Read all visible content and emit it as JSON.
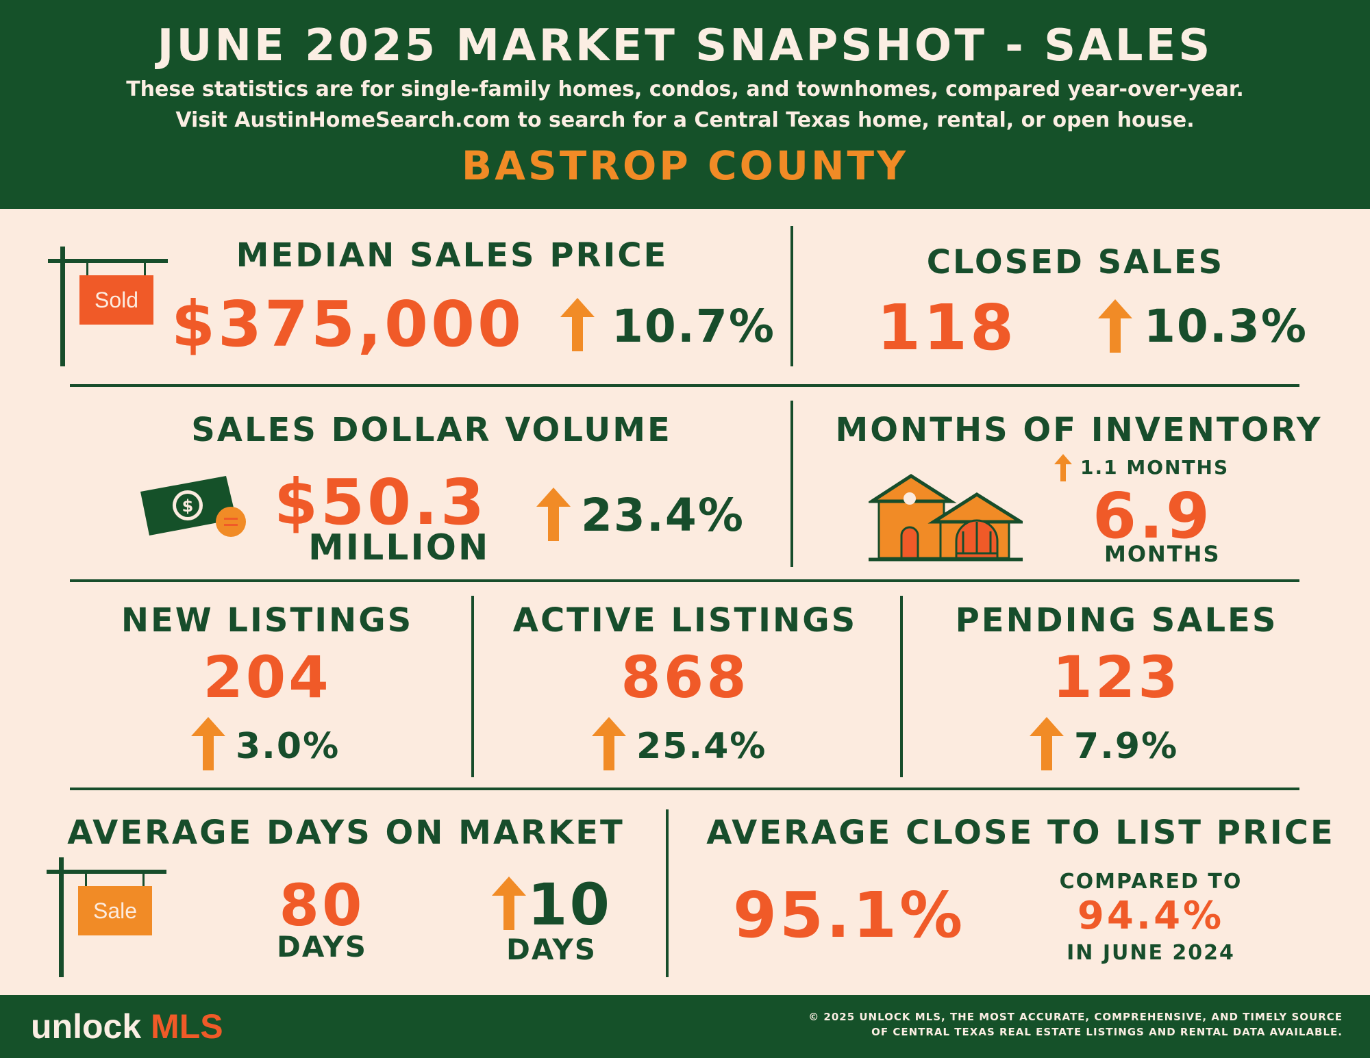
{
  "header": {
    "title": "JUNE 2025 MARKET SNAPSHOT - SALES",
    "subtitle_line1": "These statistics are for single-family homes, condos, and townhomes, compared year-over-year.",
    "subtitle_line2": "Visit AustinHomeSearch.com to search for a Central Texas home, rental, or open house.",
    "county": "BASTROP COUNTY"
  },
  "median_sales_price": {
    "label": "MEDIAN SALES PRICE",
    "value": "$375,000",
    "change": "10.7%",
    "sign_text": "Sold"
  },
  "closed_sales": {
    "label": "CLOSED SALES",
    "value": "118",
    "change": "10.3%"
  },
  "sales_dollar_volume": {
    "label": "SALES DOLLAR VOLUME",
    "value": "$50.3",
    "unit": "MILLION",
    "change": "23.4%"
  },
  "months_of_inventory": {
    "label": "MONTHS OF INVENTORY",
    "change": "1.1  MONTHS",
    "value": "6.9",
    "unit": "MONTHS"
  },
  "new_listings": {
    "label": "NEW LISTINGS",
    "value": "204",
    "change": "3.0%"
  },
  "active_listings": {
    "label": "ACTIVE LISTINGS",
    "value": "868",
    "change": "25.4%"
  },
  "pending_sales": {
    "label": "PENDING SALES",
    "value": "123",
    "change": "7.9%"
  },
  "avg_days_on_market": {
    "label": "AVERAGE DAYS ON MARKET",
    "value": "80",
    "unit": "DAYS",
    "change": "10",
    "change_unit": "DAYS",
    "sign_text": "Sale"
  },
  "avg_close_to_list": {
    "label": "AVERAGE CLOSE TO LIST PRICE",
    "value": "95.1%",
    "compared_label": "COMPARED TO",
    "compared_value": "94.4%",
    "compared_period": "IN JUNE 2024"
  },
  "footer": {
    "logo_unlock": "unlock",
    "logo_mls": "MLS",
    "copyright_line1": "© 2025 UNLOCK MLS, THE MOST ACCURATE, COMPREHENSIVE, AND TIMELY SOURCE",
    "copyright_line2": "OF CENTRAL TEXAS REAL ESTATE LISTINGS AND RENTAL DATA AVAILABLE."
  },
  "colors": {
    "dark_green": "#155129",
    "cream": "#fcebdf",
    "orange_red": "#f05a28",
    "orange": "#f18b26"
  },
  "icons": [
    "sold-sign-icon",
    "money-icon",
    "house-icon",
    "sale-sign-icon",
    "up-arrow-icon"
  ]
}
